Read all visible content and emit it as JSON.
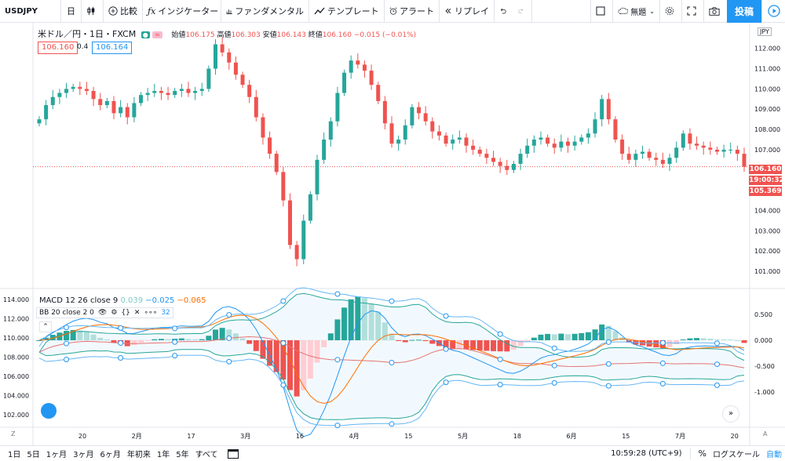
{
  "toolbar": {
    "symbol": "USDJPY",
    "interval": "日",
    "compare": "比較",
    "indicators": "インジケーター",
    "fundamentals": "ファンダメンタル",
    "templates": "テンプレート",
    "alert": "アラート",
    "replay": "リプレイ",
    "layout_name": "無題",
    "post": "投稿"
  },
  "header": {
    "title": "米ドル／円・1日・FXCM",
    "open_label": "始値",
    "open": "106.175",
    "high_label": "高値",
    "high": "106.303",
    "low_label": "安値",
    "low": "106.143",
    "close_label": "終値",
    "close": "106.160",
    "change": "−0.015 (−0.01%)",
    "sell": "106.160",
    "spread": "0.4",
    "buy": "106.164",
    "currency": "JPY"
  },
  "price_axis": [
    "112.000",
    "111.000",
    "110.000",
    "109.000",
    "108.000",
    "107.000",
    "106.000",
    "105.000",
    "104.000",
    "103.000",
    "102.000",
    "101.000"
  ],
  "price_tags": {
    "last": "106.160",
    "countdown": "19:00:32",
    "low": "105.369"
  },
  "macd_axis": [
    "0.500",
    "0.000",
    "-0.500",
    "-1.000"
  ],
  "left_axis": [
    "114.000",
    "112.000",
    "110.000",
    "108.000",
    "106.000",
    "104.000",
    "102.000"
  ],
  "macd_legend": {
    "name": "MACD 12 26 close 9",
    "v1": "0.039",
    "v2": "−0.025",
    "v3": "−0.065"
  },
  "bb_legend": {
    "name": "BB 20 close 2 0",
    "tail": "32"
  },
  "time_axis": [
    "20",
    "2月",
    "17",
    "3月",
    "16",
    "4月",
    "15",
    "5月",
    "18",
    "6月",
    "15",
    "7月",
    "20"
  ],
  "bottom": {
    "ranges": [
      "1日",
      "5日",
      "1ヶ月",
      "3ヶ月",
      "6ヶ月",
      "年初来",
      "1年",
      "5年",
      "すべて"
    ],
    "clock": "10:59:28 (UTC+9)",
    "percent": "%",
    "log": "ログスケール",
    "auto": "自動"
  },
  "colors": {
    "up": "#26a69a",
    "down": "#ef5350",
    "accent": "#2196f3",
    "bb": "#2196f3",
    "macd": "#ff6d00"
  },
  "chart_data": {
    "type": "candlestick",
    "title": "米ドル／円・1日・FXCM",
    "ylim": [
      100.5,
      112.8
    ],
    "closes": [
      108.5,
      109.2,
      109.6,
      109.8,
      110.0,
      110.1,
      110.0,
      109.9,
      109.5,
      109.2,
      109.4,
      108.8,
      109.1,
      108.6,
      109.3,
      109.7,
      109.8,
      109.9,
      109.8,
      109.7,
      109.9,
      110.0,
      109.8,
      109.9,
      110.0,
      111.0,
      112.2,
      111.8,
      111.3,
      110.7,
      110.2,
      109.6,
      108.6,
      107.6,
      106.8,
      105.9,
      104.5,
      102.3,
      101.6,
      103.5,
      104.8,
      106.5,
      107.5,
      108.4,
      109.8,
      110.8,
      111.4,
      111.2,
      110.9,
      110.2,
      109.4,
      108.3,
      107.3,
      107.5,
      108.2,
      109.1,
      108.8,
      108.4,
      107.9,
      107.7,
      107.3,
      107.5,
      107.6,
      107.2,
      107.0,
      106.8,
      106.6,
      106.4,
      106.2,
      106.0,
      106.3,
      106.8,
      107.2,
      107.5,
      107.6,
      107.3,
      107.1,
      107.4,
      107.2,
      107.4,
      107.6,
      107.8,
      108.5,
      109.5,
      108.5,
      107.5,
      106.8,
      106.5,
      106.8,
      106.9,
      106.6,
      106.5,
      106.3,
      106.6,
      107.1,
      107.8,
      107.3,
      107.2,
      107.1,
      107.0,
      106.9,
      107.0,
      107.0,
      106.8,
      106.16
    ]
  }
}
